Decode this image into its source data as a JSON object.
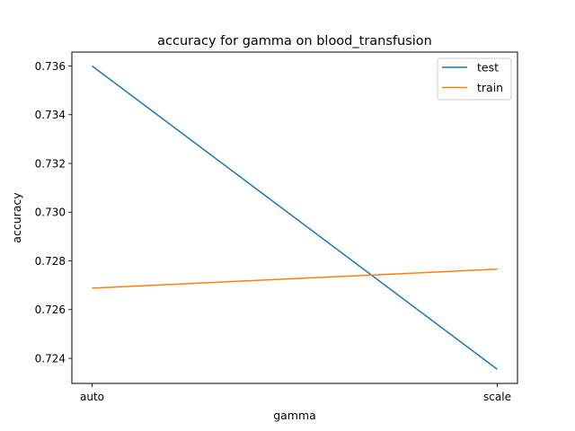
{
  "chart_data": {
    "type": "line",
    "title": "accuracy for gamma on  blood_transfusion",
    "xlabel": "gamma",
    "ylabel": "accuracy",
    "categories": [
      "auto",
      "scale"
    ],
    "ylim": [
      0.72297,
      0.73657
    ],
    "yticks": [
      0.724,
      0.726,
      0.728,
      0.73,
      0.732,
      0.734,
      0.736
    ],
    "ytick_labels": [
      "0.724",
      "0.726",
      "0.728",
      "0.730",
      "0.732",
      "0.734",
      "0.736"
    ],
    "grid": false,
    "legend_position": "top-right",
    "series": [
      {
        "name": "test",
        "color": "#1f77b4",
        "values": [
          0.736,
          0.72355
        ]
      },
      {
        "name": "train",
        "color": "#ff7f0e",
        "values": [
          0.72688,
          0.72766
        ]
      }
    ]
  }
}
